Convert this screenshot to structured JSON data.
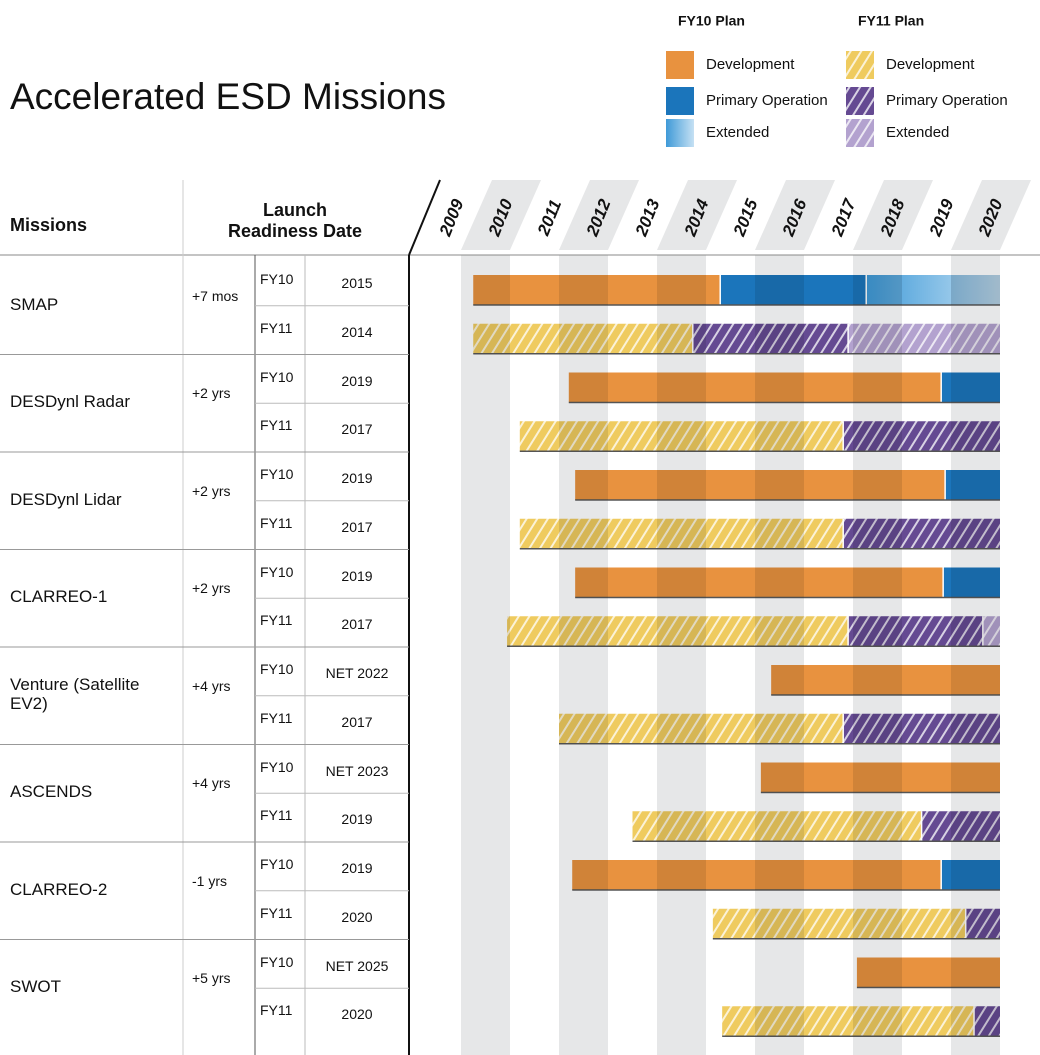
{
  "title": "Accelerated ESD Missions",
  "legend": [
    {
      "title": "FY10 Plan",
      "hatched": false,
      "items": [
        {
          "label": "Development",
          "color": "#e8923f"
        },
        {
          "label": "Primary Operation",
          "color": "#1b75bb"
        },
        {
          "label": "Extended",
          "color": "#3f9ad8",
          "gradient": true
        }
      ]
    },
    {
      "title": "FY11 Plan",
      "hatched": true,
      "items": [
        {
          "label": "Development",
          "color": "#efcb5f"
        },
        {
          "label": "Primary Operation",
          "color": "#654a92"
        },
        {
          "label": "Extended",
          "color": "#b3a2cf"
        }
      ]
    }
  ],
  "headers": {
    "missions": "Missions",
    "launch": [
      "Launch",
      "Readiness Date"
    ]
  },
  "chart_data": {
    "type": "gantt",
    "years": [
      2009,
      2010,
      2011,
      2012,
      2013,
      2014,
      2015,
      2016,
      2017,
      2018,
      2019,
      2020
    ],
    "xlim": [
      2009,
      2021
    ]
  },
  "missions": [
    {
      "name": "SMAP",
      "delta": "+7 mos",
      "rows": [
        {
          "plan": "FY10",
          "date": "2015",
          "segments": [
            [
              2010.25,
              2015.29
            ],
            [
              2015.29,
              2018.27
            ],
            [
              2018.27,
              2021
            ]
          ]
        },
        {
          "plan": "FY11",
          "date": "2014",
          "segments": [
            [
              2010.25,
              2014.73
            ],
            [
              2014.73,
              2017.9
            ],
            [
              2017.9,
              2021
            ]
          ]
        }
      ]
    },
    {
      "name": "DESDynl Radar",
      "delta": "+2 yrs",
      "rows": [
        {
          "plan": "FY10",
          "date": "2019",
          "segments": [
            [
              2012.2,
              2019.8
            ],
            [
              2019.8,
              2021
            ]
          ]
        },
        {
          "plan": "FY11",
          "date": "2017",
          "segments": [
            [
              2011.2,
              2017.8
            ],
            [
              2017.8,
              2021
            ]
          ]
        }
      ]
    },
    {
      "name": "DESDynl Lidar",
      "delta": "+2 yrs",
      "rows": [
        {
          "plan": "FY10",
          "date": "2019",
          "segments": [
            [
              2012.33,
              2019.88
            ],
            [
              2019.88,
              2021
            ]
          ]
        },
        {
          "plan": "FY11",
          "date": "2017",
          "segments": [
            [
              2011.2,
              2017.8
            ],
            [
              2017.8,
              2021
            ]
          ]
        }
      ]
    },
    {
      "name": "CLARREO-1",
      "delta": "+2 yrs",
      "rows": [
        {
          "plan": "FY10",
          "date": "2019",
          "segments": [
            [
              2012.33,
              2019.84
            ],
            [
              2019.84,
              2021
            ]
          ]
        },
        {
          "plan": "FY11",
          "date": "2017",
          "segments": [
            [
              2010.94,
              2017.9
            ],
            [
              2017.9,
              2020.65
            ],
            [
              2020.65,
              2021
            ]
          ]
        }
      ]
    },
    {
      "name": "Venture (Satellite EV2)",
      "delta": "+4 yrs",
      "rows": [
        {
          "plan": "FY10",
          "date": "NET 2022",
          "segments": [
            [
              2016.33,
              2021
            ]
          ]
        },
        {
          "plan": "FY11",
          "date": "2017",
          "segments": [
            [
              2012.0,
              2017.8
            ],
            [
              2017.8,
              2021
            ]
          ]
        }
      ]
    },
    {
      "name": "ASCENDS",
      "delta": "+4 yrs",
      "rows": [
        {
          "plan": "FY10",
          "date": "NET 2023",
          "segments": [
            [
              2016.12,
              2021
            ]
          ]
        },
        {
          "plan": "FY11",
          "date": "2019",
          "segments": [
            [
              2013.5,
              2019.4
            ],
            [
              2019.4,
              2021
            ]
          ]
        }
      ]
    },
    {
      "name": "CLARREO-2",
      "delta": "-1 yrs",
      "rows": [
        {
          "plan": "FY10",
          "date": "2019",
          "segments": [
            [
              2012.27,
              2019.8
            ],
            [
              2019.8,
              2021
            ]
          ]
        },
        {
          "plan": "FY11",
          "date": "2020",
          "segments": [
            [
              2015.14,
              2020.3
            ],
            [
              2020.3,
              2021
            ]
          ]
        }
      ]
    },
    {
      "name": "SWOT",
      "delta": "+5 yrs",
      "rows": [
        {
          "plan": "FY10",
          "date": "NET 2025",
          "segments": [
            [
              2018.08,
              2021
            ]
          ]
        },
        {
          "plan": "FY11",
          "date": "2020",
          "segments": [
            [
              2015.33,
              2020.47
            ],
            [
              2020.47,
              2021
            ]
          ]
        }
      ]
    }
  ]
}
